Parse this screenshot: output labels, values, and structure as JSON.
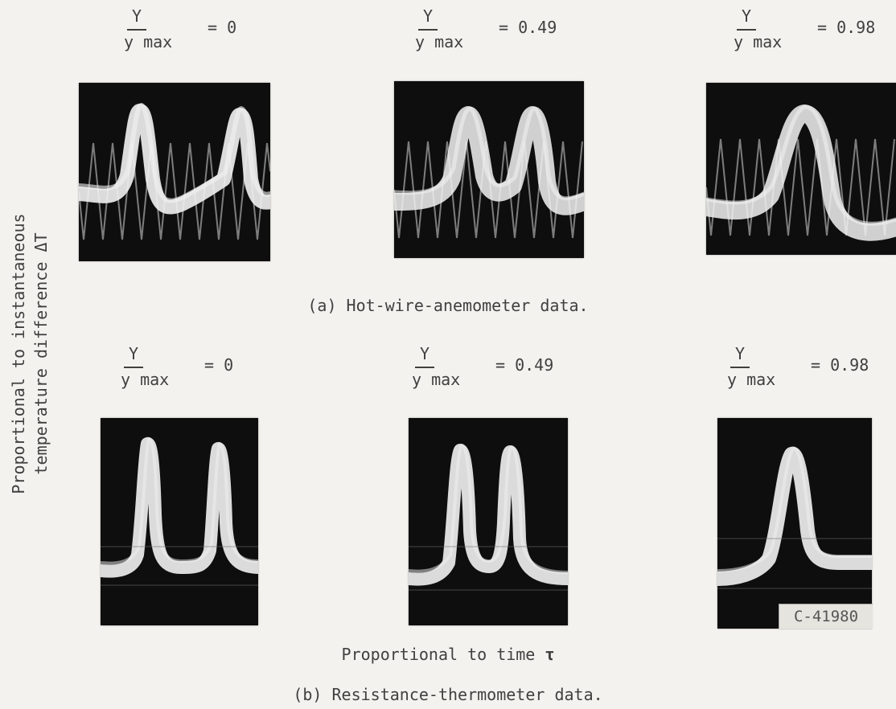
{
  "y_axis_label_line1": "Proportional to instantaneous",
  "y_axis_label_line2": "temperature difference ΔT",
  "x_axis_label_text": "Proportional to time ",
  "x_axis_label_symbol": "τ",
  "fraction": {
    "numerator": "Y",
    "denominator": "y max"
  },
  "rows": [
    {
      "caption": "(a) Hot-wire-anemometer data.",
      "positions": [
        "= 0",
        "= 0.49",
        "= 0.98"
      ]
    },
    {
      "caption": "(b) Resistance-thermometer data.",
      "positions": [
        "= 0",
        "= 0.49",
        "= 0.98"
      ]
    }
  ],
  "photo_id": "C-41980",
  "colors": {
    "background": "#f4f2ee",
    "panel": "#0e0e0e",
    "trace": "#f2f2f2",
    "text": "#404040"
  }
}
